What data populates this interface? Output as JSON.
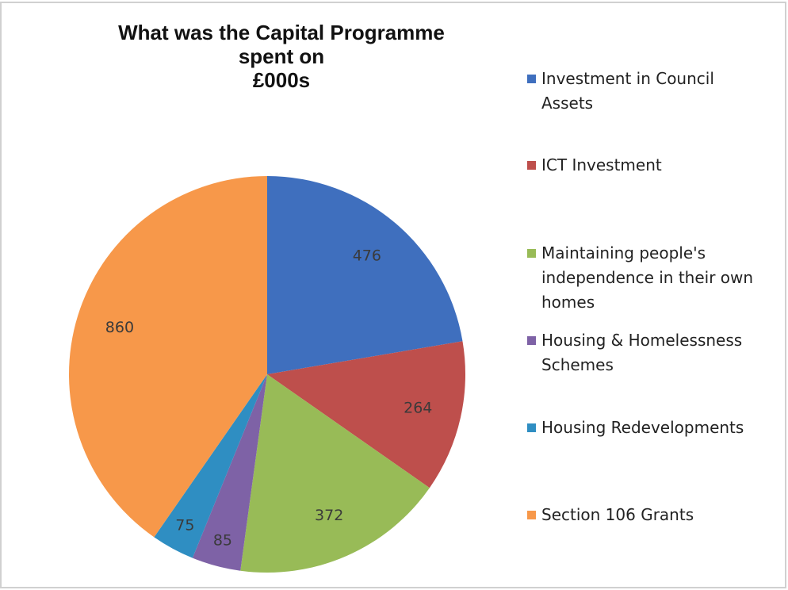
{
  "chart_data": {
    "type": "pie",
    "title": [
      "What was the Capital Programme",
      "spent on",
      "£000s"
    ],
    "categories": [
      "Investment in Council Assets",
      "ICT Investment",
      "Maintaining people's independence in their own homes",
      "Housing & Homelessness Schemes",
      "Housing Redevelopments",
      "Section 106 Grants"
    ],
    "values": [
      476,
      264,
      372,
      85,
      75,
      860
    ],
    "colors": [
      "#3f6fbe",
      "#be4f4c",
      "#98bb57",
      "#7e62a6",
      "#2f8ec2",
      "#f7984a"
    ],
    "legend": "right"
  }
}
